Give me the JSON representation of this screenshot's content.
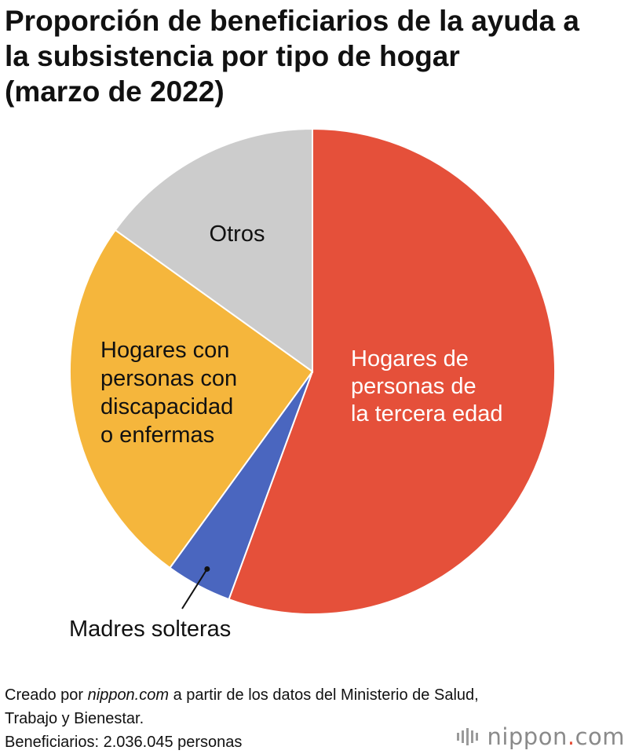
{
  "title": {
    "lines": [
      "Proporción de beneficiarios de la ayuda a",
      "la subsistencia por tipo de hogar",
      "(marzo de 2022)"
    ]
  },
  "chart_data": {
    "type": "pie",
    "start_angle_deg": 0,
    "direction": "clockwise",
    "slices": [
      {
        "label_lines": [
          "Hogares de",
          "personas de",
          "la tercera edad"
        ],
        "value": 55.6,
        "color": "#e5503a",
        "label_color": "#ffffff",
        "label_placement": "inside"
      },
      {
        "label_lines": [
          "Madres solteras"
        ],
        "value": 4.4,
        "color": "#4a66bf",
        "label_color": "#111111",
        "label_placement": "outside-leader"
      },
      {
        "label_lines": [
          "Hogares con",
          "personas con",
          "discapacidad",
          "o enfermas"
        ],
        "value": 24.9,
        "color": "#f5b63c",
        "label_color": "#111111",
        "label_placement": "inside"
      },
      {
        "label_lines": [
          "Otros"
        ],
        "value": 15.1,
        "color": "#cccccc",
        "label_color": "#111111",
        "label_placement": "inside"
      }
    ]
  },
  "footer": {
    "line1_prefix": "Creado por ",
    "line1_brand": "nippon.com",
    "line1_suffix": " a partir de los datos del Ministerio de Salud,",
    "line2": "Trabajo y Bienestar.",
    "line3": "Beneficiarios: 2.036.045 personas"
  },
  "logo": {
    "text_main": "nippon",
    "text_dot": ".",
    "text_tld": "com",
    "color_main": "#8a8a8a",
    "color_dot": "#e5503a",
    "color_tld": "#8a8a8a",
    "icon": "bars-logo-icon"
  }
}
